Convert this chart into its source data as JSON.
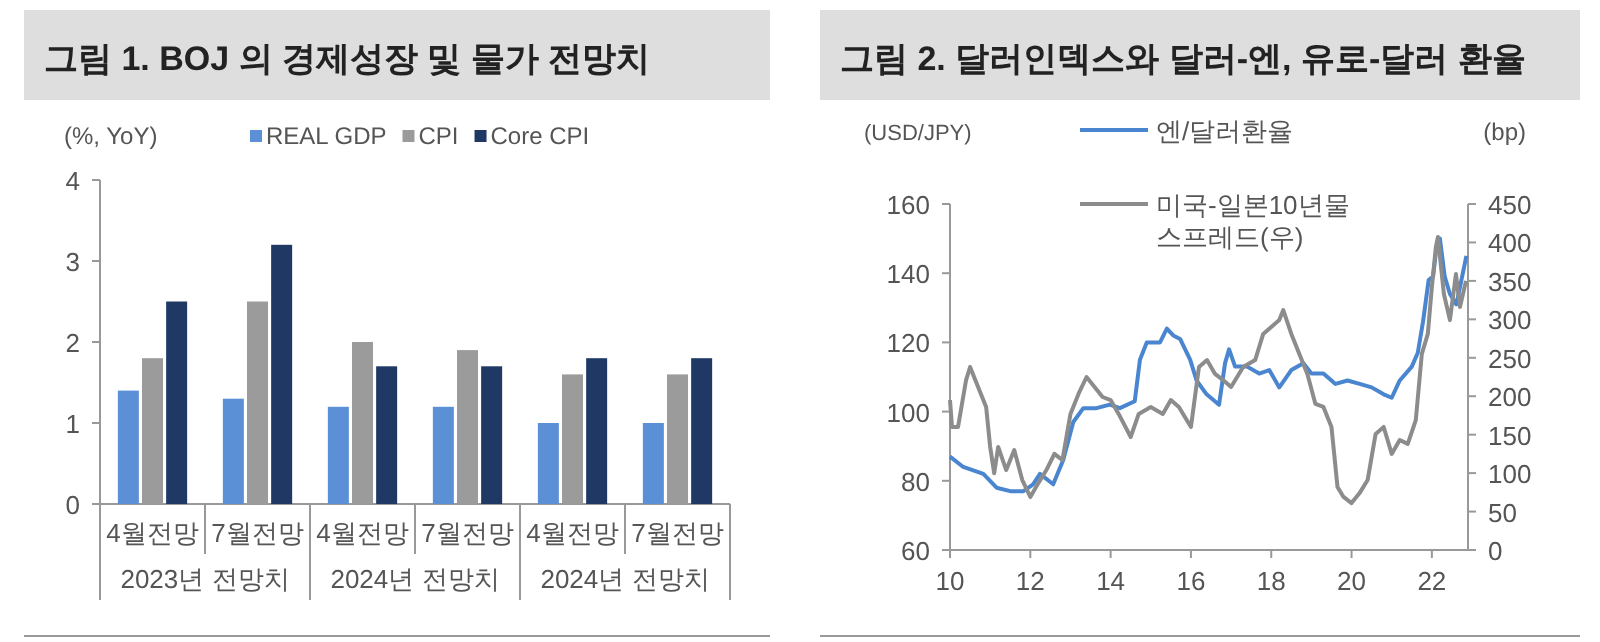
{
  "chart_data": [
    {
      "type": "bar",
      "title": "그림 1.  BOJ 의 경제성장 및 물가 전망치",
      "ylabel": "(%, YoY)",
      "categories": [
        "4월전망",
        "7월전망",
        "4월전망",
        "7월전망",
        "4월전망",
        "7월전망"
      ],
      "series": [
        {
          "name": "REAL GDP",
          "color": "#5b8fd6",
          "values": [
            1.4,
            1.3,
            1.2,
            1.2,
            1.0,
            1.0
          ]
        },
        {
          "name": "CPI",
          "color": "#9b9b9b",
          "values": [
            1.8,
            2.5,
            2.0,
            1.9,
            1.6,
            1.6
          ]
        },
        {
          "name": "Core CPI",
          "color": "#1f3864",
          "values": [
            2.5,
            3.2,
            1.7,
            1.7,
            1.8,
            1.8
          ]
        }
      ],
      "ylim": [
        0,
        4
      ],
      "yticks": [
        0,
        1,
        2,
        3,
        4
      ],
      "legend": "top",
      "annotations": [
        "2023년 전망치",
        "2024년 전망치",
        "2024년 전망치"
      ]
    },
    {
      "type": "line",
      "title": "그림 2.  달러인덱스와 달러-엔, 유로-달러 환율",
      "ylabel": "(USD/JPY)",
      "y2label": "(bp)",
      "series": [
        {
          "name": "엔/달러환율",
          "color": "#4a86d0",
          "x": [
            10.0,
            10.33,
            10.83,
            11.16,
            11.5,
            11.83,
            12.07,
            12.24,
            12.57,
            12.82,
            13.07,
            13.32,
            13.65,
            13.98,
            14.23,
            14.6,
            14.73,
            14.9,
            15.23,
            15.4,
            15.56,
            15.73,
            15.98,
            16.14,
            16.39,
            16.7,
            16.85,
            16.95,
            17.1,
            17.4,
            17.7,
            17.95,
            18.2,
            18.5,
            18.8,
            19.0,
            19.3,
            19.6,
            19.9,
            20.2,
            20.5,
            20.8,
            21.0,
            21.2,
            21.5,
            21.65,
            21.78,
            21.92,
            22.03,
            22.12,
            22.2,
            22.32,
            22.45,
            22.61,
            22.7,
            22.86
          ],
          "values": [
            87,
            84,
            82,
            78,
            77,
            77,
            79,
            82,
            79,
            86,
            97,
            101,
            101,
            102,
            101,
            103,
            115,
            120,
            120,
            124,
            122,
            121,
            115,
            109,
            105,
            102,
            114,
            118,
            113,
            113,
            111,
            112,
            107,
            112,
            114,
            111,
            111,
            108,
            109,
            108,
            107,
            105,
            104,
            109,
            113,
            117,
            126,
            138,
            139,
            148,
            150,
            139,
            134,
            131,
            136,
            145
          ]
        },
        {
          "name": "미국-일본10년물 스프레드(우)",
          "color": "#8c8c8c",
          "axis": "y2",
          "x": [
            10.0,
            10.05,
            10.2,
            10.4,
            10.5,
            10.7,
            10.9,
            11.0,
            11.1,
            11.2,
            11.4,
            11.6,
            11.8,
            12.0,
            12.2,
            12.4,
            12.6,
            12.8,
            13.0,
            13.2,
            13.4,
            13.6,
            13.8,
            14.0,
            14.2,
            14.5,
            14.7,
            15.0,
            15.3,
            15.5,
            15.7,
            16.0,
            16.2,
            16.4,
            16.6,
            16.8,
            17.0,
            17.3,
            17.6,
            17.8,
            18.0,
            18.2,
            18.3,
            18.5,
            18.7,
            18.9,
            19.1,
            19.3,
            19.5,
            19.65,
            19.8,
            20.0,
            20.2,
            20.4,
            20.6,
            20.8,
            21.0,
            21.2,
            21.4,
            21.6,
            21.75,
            21.9,
            22.0,
            22.1,
            22.15,
            22.3,
            22.45,
            22.6,
            22.7,
            22.85
          ],
          "values": [
            195,
            160,
            160,
            221,
            238,
            212,
            186,
            134,
            100,
            134,
            104,
            130,
            91,
            69,
            87,
            104,
            125,
            117,
            177,
            203,
            225,
            212,
            199,
            195,
            177,
            147,
            177,
            186,
            177,
            195,
            186,
            160,
            238,
            247,
            229,
            221,
            212,
            238,
            247,
            281,
            290,
            299,
            312,
            281,
            255,
            229,
            190,
            186,
            160,
            82,
            69,
            61,
            74,
            91,
            151,
            160,
            125,
            143,
            138,
            169,
            255,
            281,
            342,
            394,
            407,
            333,
            299,
            359,
            316,
            350
          ]
        }
      ],
      "xlim": [
        10,
        22.9
      ],
      "xticks": [
        10,
        12,
        14,
        16,
        18,
        20,
        22
      ],
      "ylim": [
        60,
        160
      ],
      "yticks": [
        60,
        80,
        100,
        120,
        140,
        160
      ],
      "y2lim": [
        0,
        450
      ],
      "y2ticks": [
        0,
        50,
        100,
        150,
        200,
        250,
        300,
        350,
        400,
        450
      ],
      "legend": "top"
    }
  ]
}
